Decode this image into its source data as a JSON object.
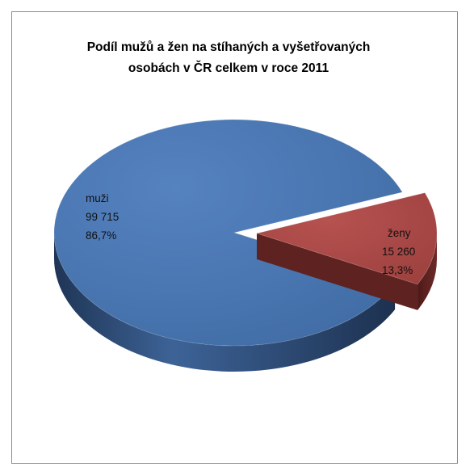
{
  "chart_data": {
    "type": "pie",
    "title_lines": [
      "Podíl mužů a žen  na stíhaných a vyšetřovaných",
      "osobách  v ČR celkem  v roce 2011"
    ],
    "slices": [
      {
        "name": "muži",
        "value": 99715,
        "value_label": "99 715",
        "percent_label": "86,7%",
        "color": "#4a73ad",
        "side_color": "#27426b"
      },
      {
        "name": "ženy",
        "value": 15260,
        "value_label": "15 260",
        "percent_label": "13,3%",
        "color": "#a94745",
        "side_color": "#5e2220"
      }
    ],
    "legend": "none",
    "style": "3d-exploded"
  }
}
